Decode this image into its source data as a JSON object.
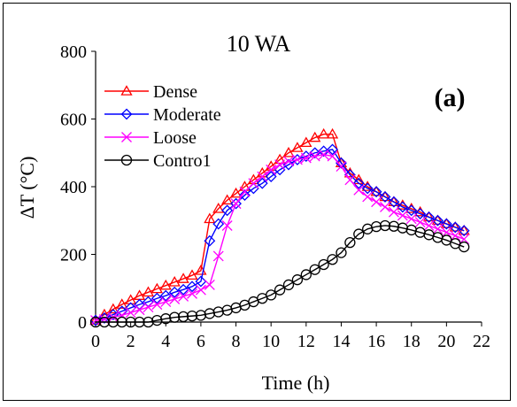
{
  "chart_data": {
    "type": "line",
    "title": "10 WA",
    "panel_label": "(a)",
    "xlabel": "Time (h)",
    "ylabel": "ΔT (°C)",
    "xlim": [
      0,
      22
    ],
    "ylim": [
      0,
      800
    ],
    "x_ticks": [
      0,
      2,
      4,
      6,
      8,
      10,
      12,
      14,
      16,
      18,
      20,
      22
    ],
    "y_ticks": [
      0,
      200,
      400,
      600,
      800
    ],
    "grid": false,
    "legend_position": "top-left",
    "x": [
      0,
      0.5,
      1,
      1.5,
      2,
      2.5,
      3,
      3.5,
      4,
      4.5,
      5,
      5.5,
      6,
      6.5,
      7,
      7.5,
      8,
      8.5,
      9,
      9.5,
      10,
      10.5,
      11,
      11.5,
      12,
      12.5,
      13,
      13.5,
      14,
      14.5,
      15,
      15.5,
      16,
      16.5,
      17,
      17.5,
      18,
      18.5,
      19,
      19.5,
      20,
      20.5,
      21
    ],
    "series": [
      {
        "name": "Dense",
        "color": "#ff0000",
        "marker": "triangle",
        "values": [
          5,
          22,
          38,
          52,
          65,
          78,
          88,
          98,
          108,
          118,
          128,
          138,
          152,
          305,
          335,
          360,
          380,
          400,
          420,
          440,
          460,
          480,
          500,
          515,
          530,
          545,
          555,
          555,
          470,
          440,
          420,
          400,
          385,
          370,
          355,
          345,
          335,
          325,
          310,
          300,
          290,
          280,
          270
        ]
      },
      {
        "name": "Moderate",
        "color": "#0000ff",
        "marker": "diamond",
        "values": [
          5,
          12,
          22,
          32,
          42,
          52,
          60,
          70,
          78,
          88,
          96,
          105,
          120,
          240,
          290,
          330,
          350,
          375,
          395,
          410,
          430,
          450,
          465,
          480,
          490,
          500,
          505,
          510,
          470,
          435,
          410,
          395,
          385,
          370,
          355,
          340,
          330,
          320,
          310,
          300,
          290,
          280,
          270
        ]
      },
      {
        "name": "Loose",
        "color": "#ff00ff",
        "marker": "x",
        "values": [
          5,
          8,
          14,
          20,
          28,
          36,
          44,
          52,
          60,
          68,
          76,
          84,
          95,
          110,
          195,
          285,
          350,
          385,
          410,
          430,
          450,
          465,
          475,
          480,
          485,
          490,
          495,
          490,
          460,
          420,
          390,
          370,
          355,
          340,
          325,
          315,
          305,
          295,
          285,
          275,
          265,
          255,
          245
        ]
      },
      {
        "name": "Contro1",
        "color": "#000000",
        "marker": "circle",
        "values": [
          0,
          0,
          0,
          0,
          0,
          0,
          0,
          5,
          10,
          14,
          16,
          18,
          20,
          25,
          30,
          35,
          42,
          50,
          60,
          70,
          80,
          95,
          110,
          125,
          140,
          155,
          170,
          185,
          205,
          235,
          260,
          275,
          282,
          285,
          283,
          278,
          272,
          265,
          258,
          250,
          242,
          232,
          222
        ]
      }
    ]
  }
}
